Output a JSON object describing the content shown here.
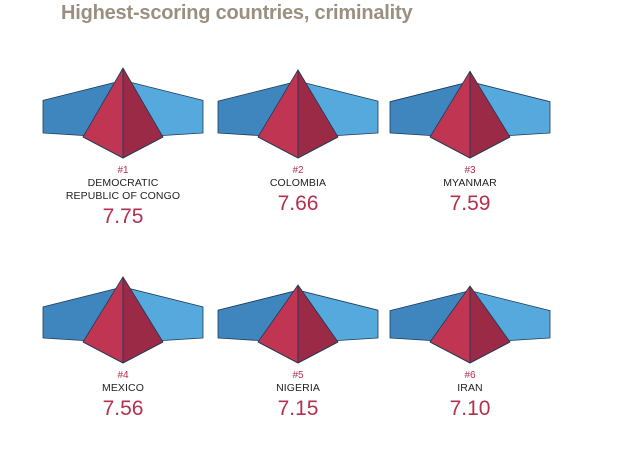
{
  "title": "Highest-scoring countries, criminality",
  "colors": {
    "pyramid_left": "#c03552",
    "pyramid_right": "#9a2a45",
    "wing_left": "#3f86bf",
    "wing_right": "#55a9dc",
    "accent": "#b3304f"
  },
  "chart_data": {
    "type": "table",
    "title": "Highest-scoring countries, criminality",
    "items": [
      {
        "rank": "#1",
        "country_lines": [
          "DEMOCRATIC",
          "REPUBLIC OF CONGO"
        ],
        "score": "7.75",
        "value": 7.75
      },
      {
        "rank": "#2",
        "country_lines": [
          "COLOMBIA"
        ],
        "score": "7.66",
        "value": 7.66
      },
      {
        "rank": "#3",
        "country_lines": [
          "MYANMAR"
        ],
        "score": "7.59",
        "value": 7.59
      },
      {
        "rank": "#4",
        "country_lines": [
          "MEXICO"
        ],
        "score": "7.56",
        "value": 7.56
      },
      {
        "rank": "#5",
        "country_lines": [
          "NIGERIA"
        ],
        "score": "7.15",
        "value": 7.15
      },
      {
        "rank": "#6",
        "country_lines": [
          "IRAN"
        ],
        "score": "7.10",
        "value": 7.1
      }
    ]
  }
}
